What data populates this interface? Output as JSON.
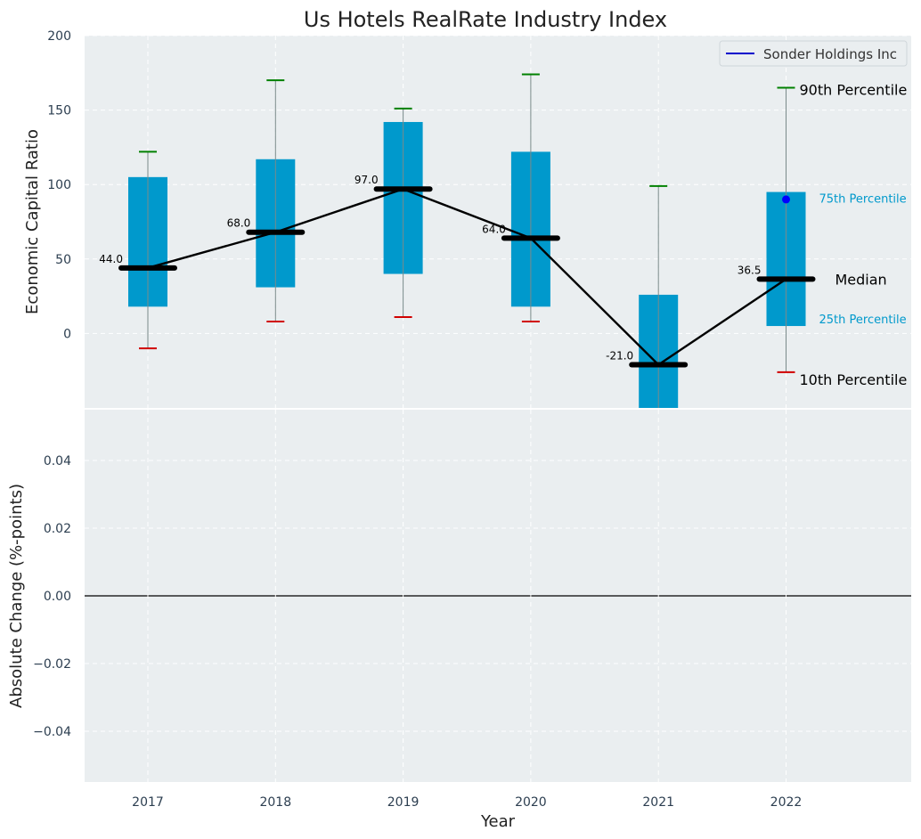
{
  "chart_data": [
    {
      "panel": "top",
      "type": "box",
      "title": "Us Hotels RealRate Industry Index",
      "ylabel": "Economic Capital Ratio",
      "ylim": [
        -50,
        200
      ],
      "yticks": [
        0,
        50,
        100,
        150,
        200
      ],
      "grid": true,
      "legend": {
        "entries": [
          "Sonder Holdings Inc"
        ],
        "position": "top-right"
      },
      "categories": [
        "2017",
        "2018",
        "2019",
        "2020",
        "2021",
        "2022"
      ],
      "p10": [
        -10,
        8,
        11,
        8,
        -50,
        -26
      ],
      "p25": [
        18,
        31,
        40,
        18,
        -50,
        5
      ],
      "median": [
        44,
        68,
        97,
        64,
        -21,
        36.5
      ],
      "median_labels": [
        "44.0",
        "68.0",
        "97.0",
        "64.0",
        "-21.0",
        "36.5"
      ],
      "p75": [
        105,
        117,
        142,
        122,
        26,
        95
      ],
      "p90": [
        122,
        170,
        151,
        174,
        99,
        165
      ],
      "company": {
        "name": "Sonder Holdings Inc",
        "category": "2022",
        "value": 90
      },
      "annotations": {
        "p90": "90th Percentile",
        "p75": "75th Percentile",
        "median": "Median",
        "p25": "25th Percentile",
        "p10": "10th Percentile"
      },
      "colors": {
        "box": "#0099cc",
        "median": "#000000",
        "p90_whisker": "#008000",
        "p10_whisker": "#d00000",
        "company": "#0000ff",
        "background": "#eaeef0"
      }
    },
    {
      "panel": "bottom",
      "type": "line",
      "ylabel": "Absolute Change (%-points)",
      "xlabel": "Year",
      "ylim": [
        -0.055,
        0.055
      ],
      "yticks": [
        "0.04",
        "0.02",
        "0.00",
        "−0.02",
        "−0.04"
      ],
      "grid": true,
      "categories": [
        "2017",
        "2018",
        "2019",
        "2020",
        "2021",
        "2022"
      ],
      "reference_line": 0
    }
  ]
}
